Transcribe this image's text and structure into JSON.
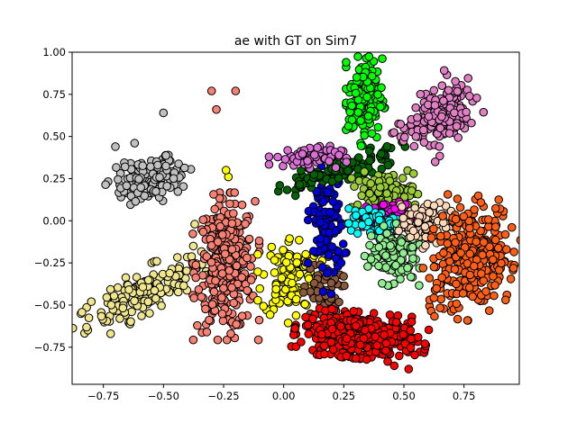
{
  "chart_data": {
    "type": "scatter",
    "title": "ae with GT on Sim7",
    "xlabel": "",
    "ylabel": "",
    "xlim": [
      -0.88,
      0.98
    ],
    "ylim": [
      -0.97,
      1.0
    ],
    "xticks": [
      -0.75,
      -0.5,
      -0.25,
      0.0,
      0.25,
      0.5,
      0.75
    ],
    "xtick_labels": [
      "−0.75",
      "−0.50",
      "−0.25",
      "0.00",
      "0.25",
      "0.50",
      "0.75"
    ],
    "yticks": [
      -0.75,
      -0.5,
      -0.25,
      0.0,
      0.25,
      0.5,
      0.75,
      1.0
    ],
    "ytick_labels": [
      "−0.75",
      "−0.50",
      "−0.25",
      "0.00",
      "0.25",
      "0.50",
      "0.75",
      "1.00"
    ],
    "grid": false,
    "legend": "none",
    "marker_edge_color": "#000000",
    "series": [
      {
        "color": "#c0c0c0",
        "n": 130,
        "center": [
          -0.55,
          0.25
        ],
        "spread": [
          0.08,
          0.06
        ],
        "axis_angle_deg": 30,
        "extra": [
          [
            -0.5,
            0.64
          ],
          [
            -0.7,
            0.44
          ],
          [
            -0.62,
            0.46
          ]
        ]
      },
      {
        "color": "#f0e68c",
        "n": 170,
        "center": [
          -0.58,
          -0.42
        ],
        "spread": [
          0.16,
          0.05
        ],
        "axis_angle_deg": 38,
        "extra": [
          [
            -0.8,
            -0.48
          ],
          [
            -0.37,
            -0.02
          ],
          [
            -0.72,
            -0.67
          ]
        ]
      },
      {
        "color": "#fa8072",
        "n": 340,
        "center": [
          -0.24,
          -0.27
        ],
        "spread": [
          0.06,
          0.19
        ],
        "axis_angle_deg": 0,
        "extra": [
          [
            -0.2,
            0.77
          ],
          [
            -0.3,
            0.77
          ],
          [
            -0.28,
            0.66
          ],
          [
            -0.22,
            -0.67
          ]
        ]
      },
      {
        "color": "#ffff00",
        "n": 110,
        "center": [
          0.03,
          -0.33
        ],
        "spread": [
          0.06,
          0.12
        ],
        "axis_angle_deg": 0,
        "extra": [
          [
            -0.23,
            0.26
          ],
          [
            -0.24,
            0.3
          ]
        ]
      },
      {
        "color": "#8b5a3c",
        "n": 60,
        "center": [
          0.16,
          -0.42
        ],
        "spread": [
          0.04,
          0.09
        ],
        "axis_angle_deg": 0,
        "extra": []
      },
      {
        "color": "#0000dd",
        "n": 120,
        "center": [
          0.18,
          -0.02
        ],
        "spread": [
          0.035,
          0.18
        ],
        "axis_angle_deg": 0,
        "extra": []
      },
      {
        "color": "#ff0000",
        "n": 420,
        "center": [
          0.32,
          -0.68
        ],
        "spread": [
          0.12,
          0.06
        ],
        "axis_angle_deg": -8,
        "extra": [
          [
            0.52,
            -0.88
          ],
          [
            0.46,
            -0.86
          ]
        ]
      },
      {
        "color": "#006400",
        "n": 120,
        "center": [
          0.24,
          0.3
        ],
        "spread": [
          0.03,
          0.13
        ],
        "axis_angle_deg": -65,
        "extra": []
      },
      {
        "color": "#da70d6",
        "n": 70,
        "center": [
          0.1,
          0.38
        ],
        "spread": [
          0.07,
          0.03
        ],
        "axis_angle_deg": 0,
        "extra": []
      },
      {
        "color": "#00ff00",
        "n": 160,
        "center": [
          0.34,
          0.72
        ],
        "spread": [
          0.035,
          0.12
        ],
        "axis_angle_deg": 0,
        "extra": []
      },
      {
        "color": "#e17fc4",
        "n": 200,
        "center": [
          0.66,
          0.64
        ],
        "spread": [
          0.06,
          0.1
        ],
        "axis_angle_deg": -35,
        "extra": [
          [
            0.55,
            0.5
          ],
          [
            0.63,
            0.35
          ]
        ]
      },
      {
        "color": "#9acd32",
        "n": 130,
        "center": [
          0.42,
          0.16
        ],
        "spread": [
          0.06,
          0.06
        ],
        "axis_angle_deg": 0,
        "extra": [
          [
            0.54,
            0.28
          ]
        ]
      },
      {
        "color": "#ff00ff",
        "n": 70,
        "center": [
          0.45,
          0.03
        ],
        "spread": [
          0.06,
          0.04
        ],
        "axis_angle_deg": 0,
        "extra": []
      },
      {
        "color": "#00ffff",
        "n": 70,
        "center": [
          0.39,
          -0.02
        ],
        "spread": [
          0.06,
          0.04
        ],
        "axis_angle_deg": 0,
        "extra": []
      },
      {
        "color": "#90ee90",
        "n": 130,
        "center": [
          0.45,
          -0.2
        ],
        "spread": [
          0.05,
          0.08
        ],
        "axis_angle_deg": 0,
        "extra": []
      },
      {
        "color": "#ffdab9",
        "n": 120,
        "center": [
          0.61,
          -0.03
        ],
        "spread": [
          0.06,
          0.06
        ],
        "axis_angle_deg": 0,
        "extra": []
      },
      {
        "color": "#ff5f15",
        "n": 300,
        "center": [
          0.78,
          -0.22
        ],
        "spread": [
          0.08,
          0.16
        ],
        "axis_angle_deg": -10,
        "extra": [
          [
            0.58,
            -0.28
          ]
        ]
      }
    ]
  }
}
